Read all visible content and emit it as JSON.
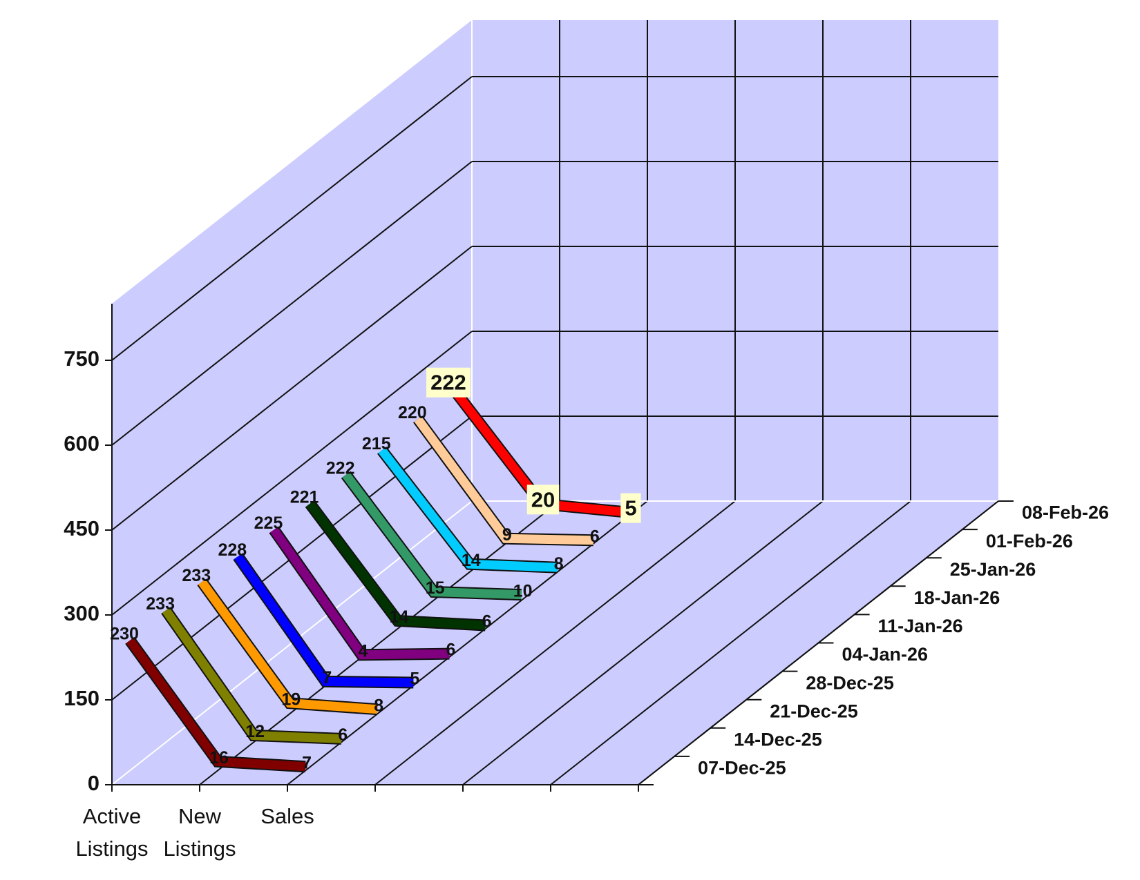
{
  "chart_data": {
    "type": "line3d",
    "categories": [
      "Active Listings",
      "New Listings",
      "Sales"
    ],
    "series": [
      {
        "name": "07-Dec-25",
        "color": "#800000",
        "values": [
          230,
          16,
          7
        ]
      },
      {
        "name": "14-Dec-25",
        "color": "#808000",
        "values": [
          233,
          12,
          6
        ]
      },
      {
        "name": "21-Dec-25",
        "color": "#ff9900",
        "values": [
          233,
          19,
          8
        ]
      },
      {
        "name": "28-Dec-25",
        "color": "#0000ff",
        "values": [
          228,
          7,
          5
        ]
      },
      {
        "name": "04-Jan-26",
        "color": "#800080",
        "values": [
          225,
          4,
          6
        ]
      },
      {
        "name": "11-Jan-26",
        "color": "#003300",
        "values": [
          221,
          14,
          6
        ]
      },
      {
        "name": "18-Jan-26",
        "color": "#339966",
        "values": [
          222,
          15,
          10
        ]
      },
      {
        "name": "25-Jan-26",
        "color": "#00ccff",
        "values": [
          215,
          14,
          8
        ]
      },
      {
        "name": "01-Feb-26",
        "color": "#ffcc99",
        "values": [
          220,
          9,
          6
        ]
      },
      {
        "name": "08-Feb-26",
        "color": "#ff0000",
        "values": [
          222,
          20,
          5
        ]
      }
    ],
    "ylim": [
      0,
      850
    ],
    "yticks": [
      0,
      150,
      300,
      450,
      600,
      750
    ],
    "grid": true
  }
}
